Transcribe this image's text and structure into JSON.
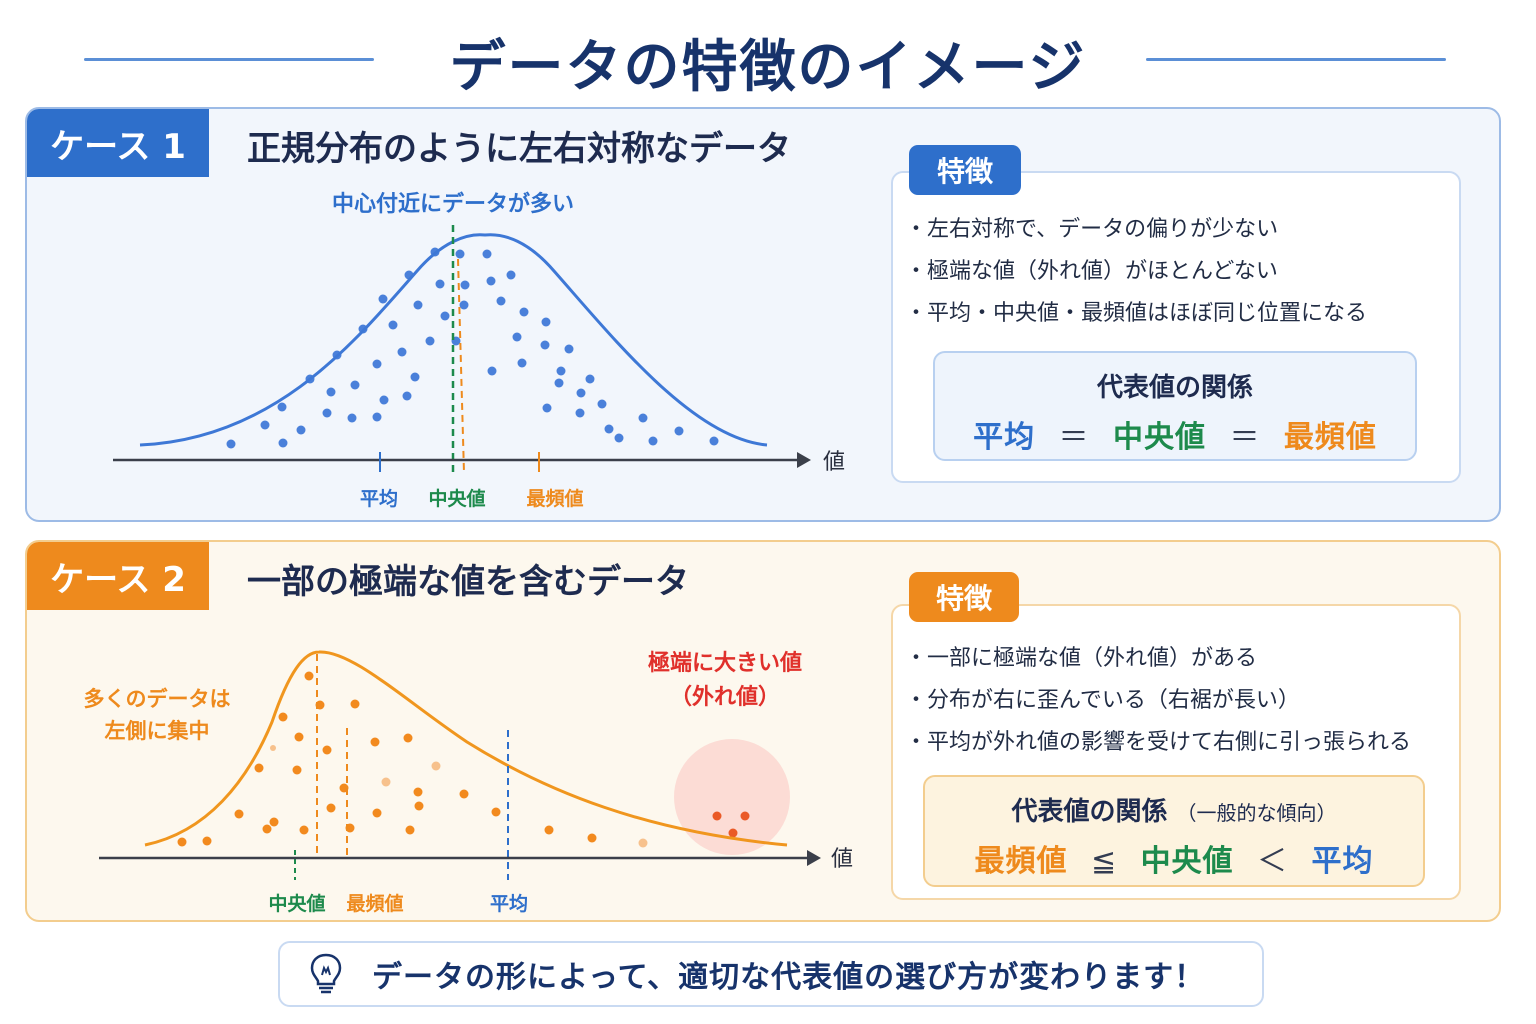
{
  "title": "データの特徴のイメージ",
  "colors": {
    "blue": "#2e6fcb",
    "green": "#1d8a4c",
    "orange": "#ee8a1d",
    "red": "#e0302b",
    "navy": "#17336b"
  },
  "case1": {
    "tag": "ケース 1",
    "heading": "正規分布のように左右対称なデータ",
    "annotation": "中心付近にデータが多い",
    "axis_label": "値",
    "markers": {
      "mean": "平均",
      "median": "中央値",
      "mode": "最頻値"
    },
    "features_tag": "特徴",
    "features": [
      "左右対称で、データの偏りが少ない",
      "極端な値（外れ値）がほとんどない",
      "平均・中央値・最頻値はほぼ同じ位置になる"
    ],
    "relation_title": "代表値の関係",
    "relation": {
      "a": "平均",
      "op1": "＝",
      "b": "中央値",
      "op2": "＝",
      "c": "最頻値"
    }
  },
  "case2": {
    "tag": "ケース 2",
    "heading": "一部の極端な値を含むデータ",
    "annotation_left": [
      "多くのデータは",
      "左側に集中"
    ],
    "annotation_outlier": [
      "極端に大きい値",
      "（外れ値）"
    ],
    "axis_label": "値",
    "markers": {
      "median": "中央値",
      "mode": "最頻値",
      "mean": "平均"
    },
    "features_tag": "特徴",
    "features": [
      "一部に極端な値（外れ値）がある",
      "分布が右に歪んでいる（右裾が長い）",
      "平均が外れ値の影響を受けて右側に引っ張られる"
    ],
    "relation_title": "代表値の関係",
    "relation_subtitle": "（一般的な傾向）",
    "relation": {
      "a": "最頻値",
      "op1": "≦",
      "b": "中央値",
      "op2": "＜",
      "c": "平均"
    }
  },
  "footer": {
    "icon": "lightbulb-icon",
    "message": "データの形によって、適切な代表値の選び方が変わります！"
  }
}
